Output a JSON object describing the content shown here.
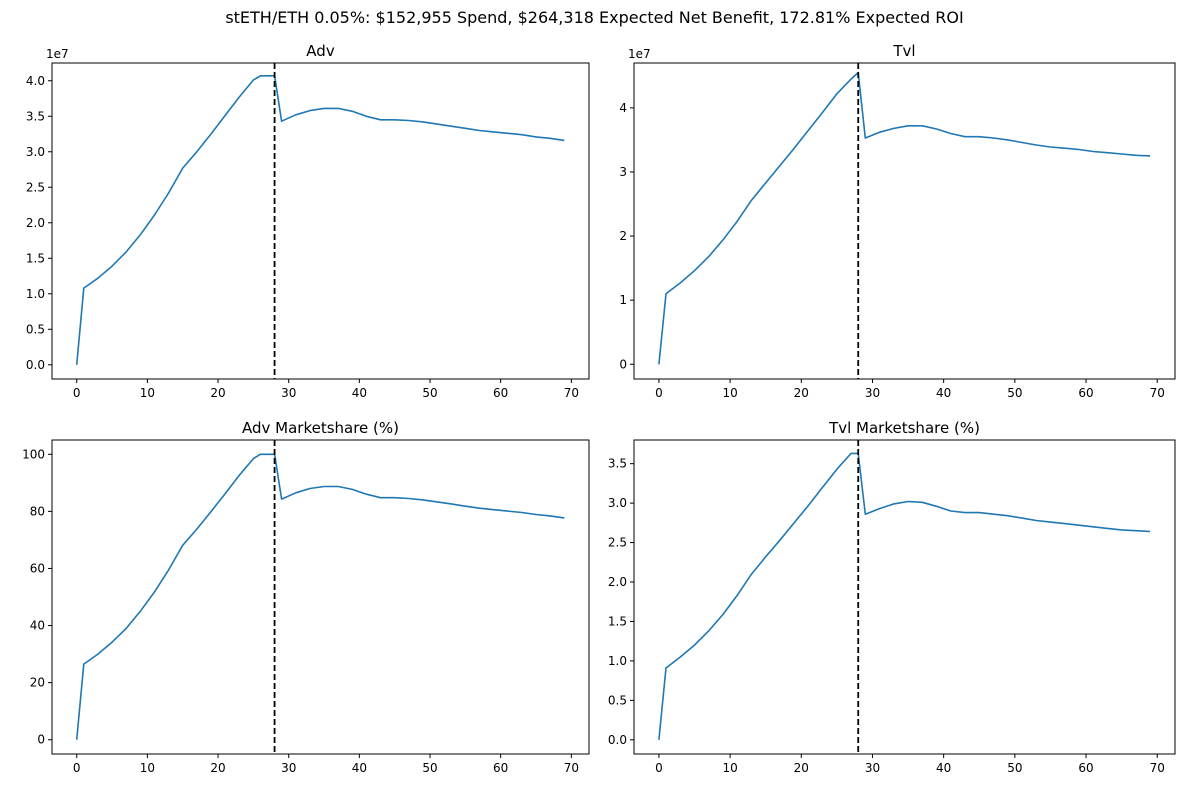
{
  "figure": {
    "title": "stETH/ETH 0.05%: $152,955 Spend, $264,318 Expected Net Benefit, 172.81% Expected ROI"
  },
  "colors": {
    "line": "#1f77b4",
    "marker": "#000000"
  },
  "chart_data": [
    {
      "type": "line",
      "title": "Adv",
      "offset_label": "1e7",
      "xlim": [
        -3.5,
        72.5
      ],
      "ylim": [
        -0.2,
        4.25
      ],
      "xticks": [
        0,
        10,
        20,
        30,
        40,
        50,
        60,
        70
      ],
      "xtick_labels": [
        "0",
        "10",
        "20",
        "30",
        "40",
        "50",
        "60",
        "70"
      ],
      "yticks": [
        0,
        0.5,
        1.0,
        1.5,
        2.0,
        2.5,
        3.0,
        3.5,
        4.0
      ],
      "ytick_labels": [
        "0.0",
        "0.5",
        "1.0",
        "1.5",
        "2.0",
        "2.5",
        "3.0",
        "3.5",
        "4.0"
      ],
      "vline_x": 28,
      "series": [
        {
          "x": [
            0,
            1,
            3,
            5,
            7,
            9,
            11,
            13,
            15,
            17,
            19,
            21,
            23,
            25,
            26,
            27,
            28,
            29,
            31,
            33,
            35,
            37,
            39,
            41,
            43,
            45,
            47,
            49,
            51,
            53,
            55,
            57,
            59,
            61,
            63,
            65,
            67,
            69
          ],
          "values": [
            0,
            1.08,
            1.22,
            1.39,
            1.59,
            1.83,
            2.11,
            2.42,
            2.77,
            3.0,
            3.25,
            3.51,
            3.77,
            4.01,
            4.07,
            4.07,
            4.07,
            3.43,
            3.52,
            3.58,
            3.61,
            3.61,
            3.57,
            3.5,
            3.45,
            3.45,
            3.44,
            3.42,
            3.39,
            3.36,
            3.33,
            3.3,
            3.28,
            3.26,
            3.24,
            3.21,
            3.19,
            3.16
          ]
        }
      ]
    },
    {
      "type": "line",
      "title": "Tvl",
      "offset_label": "1e7",
      "xlim": [
        -3.5,
        72.5
      ],
      "ylim": [
        -0.23,
        4.7
      ],
      "xticks": [
        0,
        10,
        20,
        30,
        40,
        50,
        60,
        70
      ],
      "xtick_labels": [
        "0",
        "10",
        "20",
        "30",
        "40",
        "50",
        "60",
        "70"
      ],
      "yticks": [
        0,
        1,
        2,
        3,
        4
      ],
      "ytick_labels": [
        "0",
        "1",
        "2",
        "3",
        "4"
      ],
      "vline_x": 28,
      "series": [
        {
          "x": [
            0,
            1,
            3,
            5,
            7,
            9,
            11,
            13,
            15,
            17,
            19,
            21,
            23,
            25,
            27,
            28,
            29,
            31,
            33,
            35,
            37,
            39,
            41,
            43,
            45,
            47,
            49,
            51,
            53,
            55,
            57,
            59,
            61,
            63,
            65,
            67,
            69
          ],
          "values": [
            0,
            1.1,
            1.27,
            1.46,
            1.68,
            1.94,
            2.23,
            2.56,
            2.83,
            3.1,
            3.37,
            3.65,
            3.93,
            4.22,
            4.45,
            4.55,
            3.53,
            3.62,
            3.68,
            3.72,
            3.72,
            3.67,
            3.6,
            3.55,
            3.55,
            3.53,
            3.5,
            3.46,
            3.42,
            3.39,
            3.37,
            3.35,
            3.32,
            3.3,
            3.28,
            3.26,
            3.25
          ]
        }
      ]
    },
    {
      "type": "line",
      "title": "Adv Marketshare (%)",
      "offset_label": "",
      "xlim": [
        -3.5,
        72.5
      ],
      "ylim": [
        -5,
        105
      ],
      "xticks": [
        0,
        10,
        20,
        30,
        40,
        50,
        60,
        70
      ],
      "xtick_labels": [
        "0",
        "10",
        "20",
        "30",
        "40",
        "50",
        "60",
        "70"
      ],
      "yticks": [
        0,
        20,
        40,
        60,
        80,
        100
      ],
      "ytick_labels": [
        "0",
        "20",
        "40",
        "60",
        "80",
        "100"
      ],
      "vline_x": 28,
      "series": [
        {
          "x": [
            0,
            1,
            3,
            5,
            7,
            9,
            11,
            13,
            15,
            17,
            19,
            21,
            23,
            25,
            26,
            27,
            28,
            29,
            31,
            33,
            35,
            37,
            39,
            41,
            43,
            45,
            47,
            49,
            51,
            53,
            55,
            57,
            59,
            61,
            63,
            65,
            67,
            69
          ],
          "values": [
            0,
            26.5,
            30,
            34.2,
            39,
            45,
            51.8,
            59.5,
            68.1,
            73.8,
            79.9,
            86.2,
            92.6,
            98.5,
            100,
            100,
            100,
            84.3,
            86.5,
            88,
            88.7,
            88.7,
            87.7,
            86,
            84.8,
            84.8,
            84.5,
            84,
            83.3,
            82.6,
            81.8,
            81.1,
            80.6,
            80.1,
            79.6,
            78.9,
            78.4,
            77.7
          ]
        }
      ]
    },
    {
      "type": "line",
      "title": "Tvl Marketshare (%)",
      "offset_label": "",
      "xlim": [
        -3.5,
        72.5
      ],
      "ylim": [
        -0.18,
        3.8
      ],
      "xticks": [
        0,
        10,
        20,
        30,
        40,
        50,
        60,
        70
      ],
      "xtick_labels": [
        "0",
        "10",
        "20",
        "30",
        "40",
        "50",
        "60",
        "70"
      ],
      "yticks": [
        0,
        0.5,
        1.0,
        1.5,
        2.0,
        2.5,
        3.0,
        3.5
      ],
      "ytick_labels": [
        "0.0",
        "0.5",
        "1.0",
        "1.5",
        "2.0",
        "2.5",
        "3.0",
        "3.5"
      ],
      "vline_x": 28,
      "series": [
        {
          "x": [
            0,
            1,
            3,
            5,
            7,
            9,
            11,
            13,
            15,
            17,
            19,
            21,
            23,
            25,
            27,
            28,
            29,
            31,
            33,
            35,
            37,
            39,
            41,
            43,
            45,
            47,
            49,
            51,
            53,
            55,
            57,
            59,
            61,
            63,
            65,
            67,
            69
          ],
          "values": [
            0,
            0.91,
            1.05,
            1.2,
            1.38,
            1.59,
            1.83,
            2.1,
            2.32,
            2.53,
            2.75,
            2.97,
            3.2,
            3.43,
            3.63,
            3.63,
            2.86,
            2.93,
            2.99,
            3.02,
            3.01,
            2.96,
            2.9,
            2.88,
            2.88,
            2.86,
            2.84,
            2.81,
            2.78,
            2.76,
            2.74,
            2.72,
            2.7,
            2.68,
            2.66,
            2.65,
            2.64
          ]
        }
      ]
    }
  ]
}
